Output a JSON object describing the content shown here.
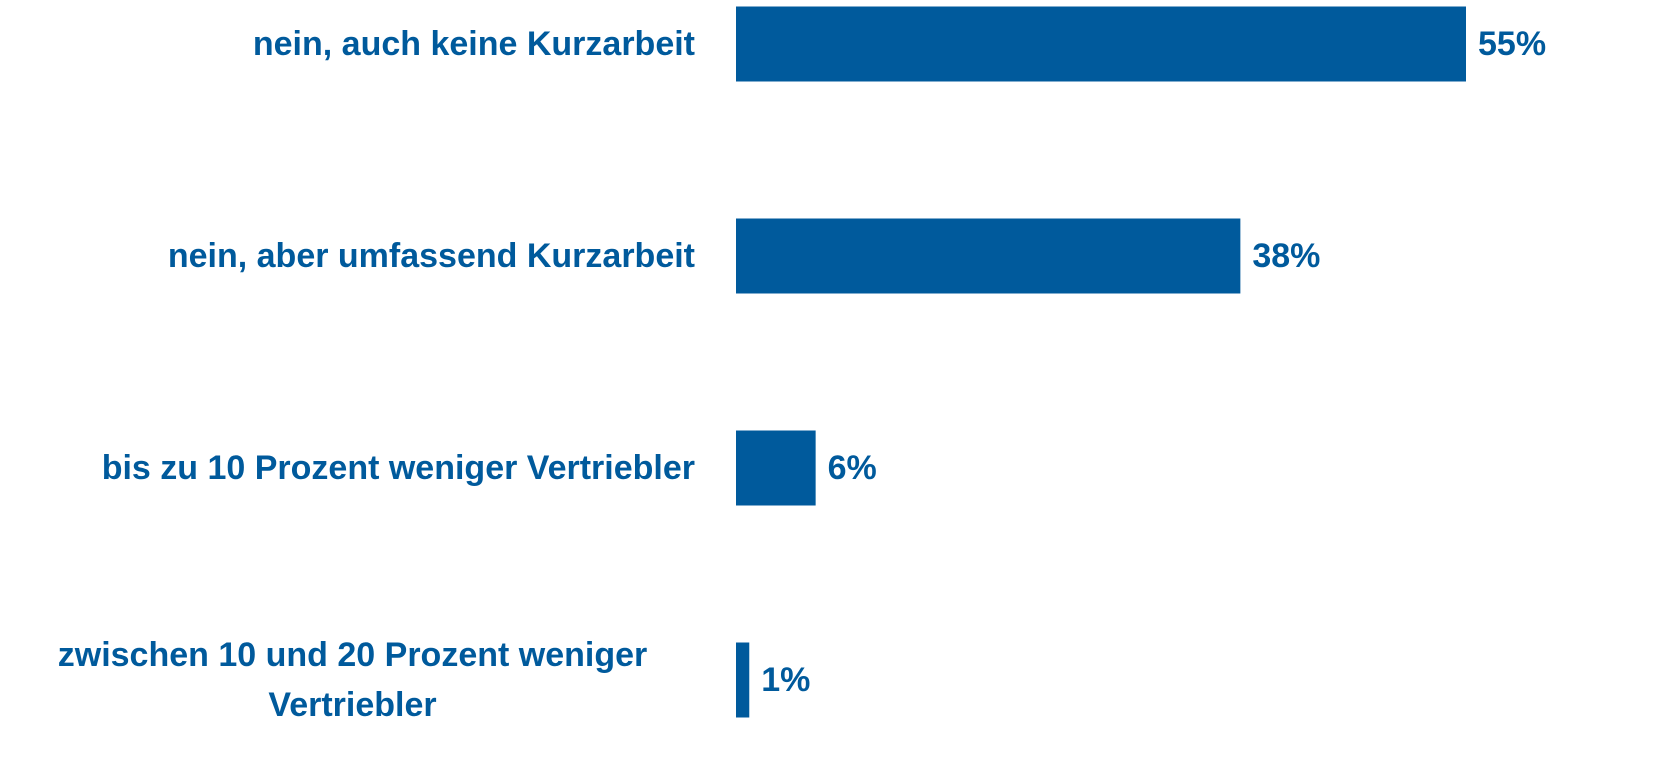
{
  "chart_data": {
    "type": "hbar",
    "categories": [
      "nein, auch keine Kurzarbeit",
      "nein, aber umfassend Kurzarbeit",
      "bis zu 10 Prozent weniger Vertriebler",
      "zwischen 10 und 20 Prozent weniger Vertriebler"
    ],
    "values": [
      55,
      38,
      6,
      1
    ],
    "value_labels": [
      "55%",
      "38%",
      "6%",
      "1%"
    ],
    "color": "#005a9c"
  }
}
